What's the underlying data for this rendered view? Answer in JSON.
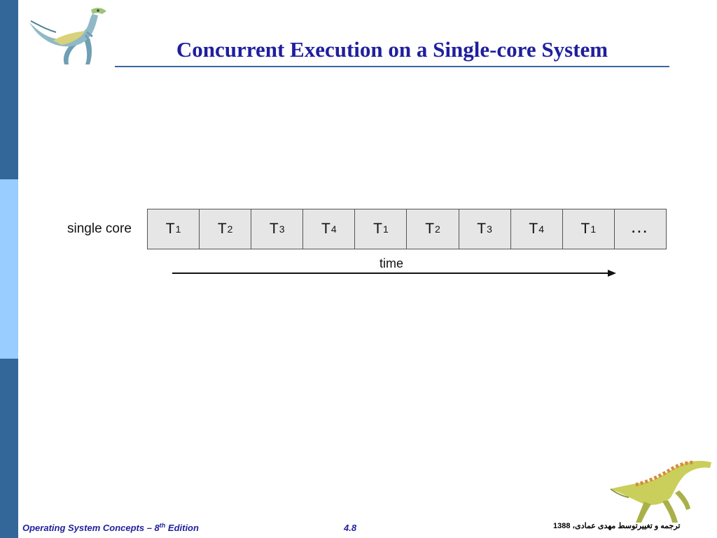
{
  "slide": {
    "title": "Concurrent Execution on a Single-core System",
    "colors": {
      "title": "#1f1f9e",
      "rule": "#3a67a0",
      "sidebar_top": "#336799",
      "sidebar_mid": "#99ccff",
      "sidebar_bottom": "#336799",
      "cell_fill": "#e6e6e6",
      "footer_text": "#1f1f9e"
    }
  },
  "diagram": {
    "core_label": "single core",
    "slots": [
      {
        "base": "T",
        "sub": "1"
      },
      {
        "base": "T",
        "sub": "2"
      },
      {
        "base": "T",
        "sub": "3"
      },
      {
        "base": "T",
        "sub": "4"
      },
      {
        "base": "T",
        "sub": "1"
      },
      {
        "base": "T",
        "sub": "2"
      },
      {
        "base": "T",
        "sub": "3"
      },
      {
        "base": "T",
        "sub": "4"
      },
      {
        "base": "T",
        "sub": "1"
      }
    ],
    "continuation": "…",
    "time_label": "time"
  },
  "footer": {
    "book_before": "Operating System Concepts – 8",
    "book_sup": "th",
    "book_after": " Edition",
    "slide_number": "4.8",
    "credit": "ترجمه و تغییرتوسط مهدی عمادی، 1388"
  },
  "icons": {
    "top_logo": "dinosaur-icon",
    "bottom_logo": "dinosaur-icon"
  }
}
